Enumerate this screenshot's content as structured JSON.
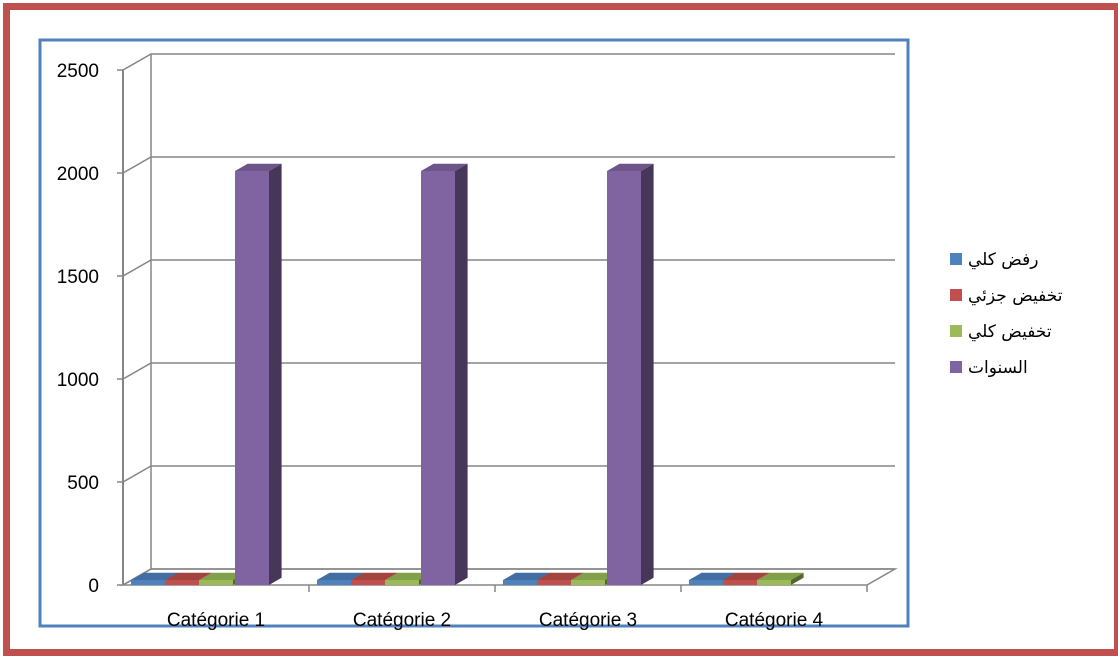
{
  "chart_data": {
    "type": "bar",
    "title": "",
    "xlabel": "",
    "ylabel": "",
    "categories": [
      "Catégorie 1",
      "Catégorie 2",
      "Catégorie 3",
      "Catégorie 4"
    ],
    "series": [
      {
        "name": "رفض كلي",
        "color": "#4f81bd",
        "values": [
          0,
          0,
          0,
          0
        ]
      },
      {
        "name": "تخفيض جزئي",
        "color": "#c0504d",
        "values": [
          0,
          0,
          0,
          0
        ]
      },
      {
        "name": "تخفيض كلي",
        "color": "#9bbb59",
        "values": [
          0,
          0,
          0,
          0
        ]
      },
      {
        "name": "السنوات",
        "color": "#8064a2",
        "values": [
          2010,
          2010,
          2010,
          null
        ]
      }
    ],
    "ylim": [
      0,
      2500
    ],
    "yticks": [
      0,
      500,
      1000,
      1500,
      2000,
      2500
    ],
    "ytick_labels": [
      "0",
      "500",
      "1000",
      "1500",
      "2000",
      "2500"
    ],
    "grid": true,
    "legend_position": "right",
    "style": "3d-clustered-column",
    "colors": {
      "outer_border": "#c0504d",
      "plot_border": "#4f81bd",
      "grid": "#868686"
    }
  }
}
